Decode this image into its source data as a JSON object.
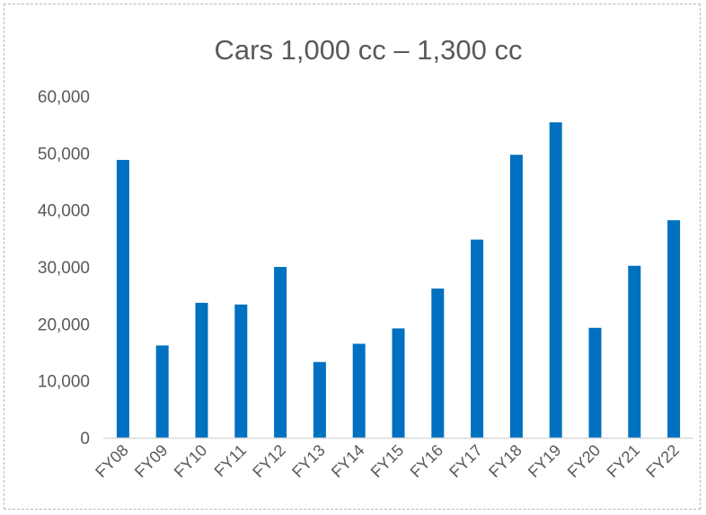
{
  "chart_data": {
    "type": "bar",
    "title": "Cars 1,000 cc – 1,300 cc",
    "xlabel": "",
    "ylabel": "",
    "categories": [
      "FY08",
      "FY09",
      "FY10",
      "FY11",
      "FY12",
      "FY13",
      "FY14",
      "FY15",
      "FY16",
      "FY17",
      "FY18",
      "FY19",
      "FY20",
      "FY21",
      "FY22"
    ],
    "values": [
      48800,
      16200,
      23700,
      23400,
      30000,
      13300,
      16500,
      19200,
      26200,
      34800,
      49700,
      55400,
      19300,
      30200,
      38200
    ],
    "ylim": [
      0,
      60000
    ],
    "yticks": [
      "0",
      "10,000",
      "20,000",
      "30,000",
      "40,000",
      "50,000",
      "60,000"
    ],
    "ytick_values": [
      0,
      10000,
      20000,
      30000,
      40000,
      50000,
      60000
    ],
    "grid": false,
    "legend": "none",
    "bar_color": "#0070C0",
    "axis_color": "#d9d9d9"
  }
}
